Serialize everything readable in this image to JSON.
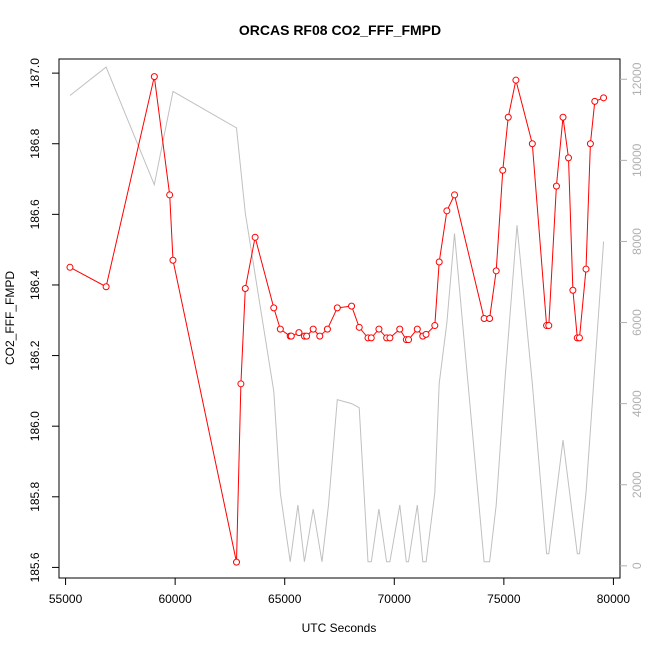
{
  "chart_data": {
    "type": "line",
    "title": "ORCAS RF08 CO2_FFF_FMPD",
    "xlabel": "UTC Seconds",
    "ylabel": "CO2_FFF_FMPD",
    "xlim": [
      54700,
      80300
    ],
    "ylim": [
      185.57,
      187.04
    ],
    "y2lim": [
      -300,
      12500
    ],
    "x_ticks": [
      55000,
      60000,
      65000,
      70000,
      75000,
      80000
    ],
    "y_ticks": [
      185.6,
      185.8,
      186.0,
      186.2,
      186.4,
      186.6,
      186.8,
      187.0
    ],
    "y_tick_labels": [
      "185.6",
      "185.8",
      "186.0",
      "186.2",
      "186.4",
      "186.6",
      "186.8",
      "187.0"
    ],
    "y2_ticks": [
      0,
      2000,
      4000,
      6000,
      8000,
      10000,
      12000
    ],
    "grid": false,
    "series": [
      {
        "axis": "left",
        "color": "#ff0000",
        "marker": "open-circle",
        "x": [
          55200,
          56850,
          59050,
          59750,
          59900,
          62800,
          63000,
          63200,
          63650,
          64500,
          64800,
          65250,
          65300,
          65650,
          65900,
          66000,
          66300,
          66600,
          66950,
          67400,
          68050,
          68400,
          68800,
          68950,
          69300,
          69650,
          69800,
          70250,
          70550,
          70650,
          71050,
          71300,
          71450,
          71850,
          72050,
          72400,
          72750,
          74100,
          74350,
          74650,
          74950,
          75200,
          75550,
          76300,
          76950,
          77050,
          77400,
          77700,
          77950,
          78150,
          78350,
          78450,
          78750,
          78950,
          79150,
          79550
        ],
        "values": [
          186.45,
          186.395,
          186.99,
          186.655,
          186.47,
          185.615,
          186.12,
          186.39,
          186.535,
          186.335,
          186.275,
          186.255,
          186.255,
          186.265,
          186.255,
          186.255,
          186.275,
          186.255,
          186.275,
          186.335,
          186.34,
          186.28,
          186.25,
          186.25,
          186.275,
          186.25,
          186.25,
          186.275,
          186.245,
          186.245,
          186.275,
          186.255,
          186.26,
          186.285,
          186.465,
          186.61,
          186.655,
          186.305,
          186.305,
          186.44,
          186.725,
          186.875,
          186.98,
          186.8,
          186.285,
          186.285,
          186.68,
          186.875,
          186.76,
          186.385,
          186.25,
          186.25,
          186.445,
          186.8,
          186.92,
          186.93
        ]
      },
      {
        "axis": "right",
        "color": "#c0c0c0",
        "marker": "none",
        "x": [
          55200,
          56850,
          59050,
          59900,
          62800,
          63200,
          64000,
          64500,
          64800,
          65250,
          65600,
          65900,
          66300,
          66700,
          67000,
          67400,
          68050,
          68400,
          68800,
          68950,
          69300,
          69650,
          69800,
          70250,
          70550,
          70650,
          71050,
          71300,
          71450,
          71850,
          72050,
          72400,
          72750,
          74100,
          74350,
          74650,
          75050,
          75600,
          76300,
          76950,
          77050,
          77700,
          78350,
          78450,
          78750,
          79550
        ],
        "values": [
          11600,
          12300,
          9400,
          11700,
          10800,
          8700,
          6000,
          4300,
          1800,
          100,
          1500,
          100,
          1400,
          100,
          1500,
          4100,
          4000,
          3900,
          100,
          100,
          1400,
          100,
          100,
          1500,
          100,
          100,
          1500,
          100,
          100,
          1800,
          4500,
          6000,
          8200,
          100,
          100,
          1500,
          4600,
          8400,
          4500,
          300,
          300,
          3100,
          300,
          300,
          1800,
          8000
        ]
      }
    ]
  }
}
